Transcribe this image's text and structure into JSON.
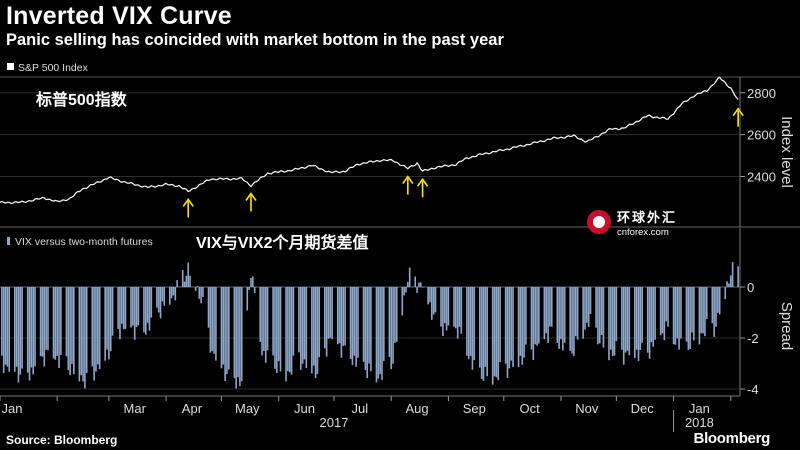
{
  "header": {
    "title": "Inverted VIX Curve",
    "subtitle": "Panic selling has coincided with market bottom in the past year"
  },
  "footer": {
    "source": "Source: Bloomberg",
    "brand": "Bloomberg"
  },
  "watermark": {
    "cn": "环球外汇",
    "en": "cnforex.com"
  },
  "chart_data": [
    {
      "type": "line",
      "panel": "top",
      "legend": "S&P 500 Index",
      "annotation": "标普500指数",
      "ylabel": "Index level",
      "yticks": [
        2400,
        2600,
        2800
      ],
      "ylim": [
        2240,
        2880
      ],
      "xlim": [
        "2017-01-01",
        "2018-02-06"
      ],
      "series": [
        {
          "values": [
            [
              "2017-01-01",
              2275
            ],
            [
              "2017-01-13",
              2277
            ],
            [
              "2017-01-25",
              2298
            ],
            [
              "2017-02-01",
              2279
            ],
            [
              "2017-02-08",
              2295
            ],
            [
              "2017-02-14",
              2337
            ],
            [
              "2017-03-01",
              2395
            ],
            [
              "2017-03-10",
              2372
            ],
            [
              "2017-03-22",
              2348
            ],
            [
              "2017-04-01",
              2362
            ],
            [
              "2017-04-08",
              2355
            ],
            [
              "2017-04-13",
              2329
            ],
            [
              "2017-04-25",
              2388
            ],
            [
              "2017-05-03",
              2388
            ],
            [
              "2017-05-12",
              2390
            ],
            [
              "2017-05-17",
              2357
            ],
            [
              "2017-05-26",
              2415
            ],
            [
              "2017-06-09",
              2431
            ],
            [
              "2017-06-19",
              2453
            ],
            [
              "2017-06-29",
              2419
            ],
            [
              "2017-07-07",
              2425
            ],
            [
              "2017-07-14",
              2459
            ],
            [
              "2017-07-26",
              2477
            ],
            [
              "2017-08-02",
              2477
            ],
            [
              "2017-08-10",
              2438
            ],
            [
              "2017-08-15",
              2464
            ],
            [
              "2017-08-18",
              2425
            ],
            [
              "2017-08-25",
              2443
            ],
            [
              "2017-09-05",
              2457
            ],
            [
              "2017-09-11",
              2488
            ],
            [
              "2017-09-20",
              2508
            ],
            [
              "2017-10-02",
              2529
            ],
            [
              "2017-10-16",
              2557
            ],
            [
              "2017-10-27",
              2581
            ],
            [
              "2017-11-08",
              2594
            ],
            [
              "2017-11-15",
              2565
            ],
            [
              "2017-11-28",
              2627
            ],
            [
              "2017-12-05",
              2630
            ],
            [
              "2017-12-18",
              2690
            ],
            [
              "2017-12-29",
              2674
            ],
            [
              "2018-01-05",
              2743
            ],
            [
              "2018-01-12",
              2786
            ],
            [
              "2018-01-19",
              2810
            ],
            [
              "2018-01-26",
              2872
            ],
            [
              "2018-02-01",
              2822
            ],
            [
              "2018-02-05",
              2762
            ]
          ]
        }
      ],
      "markers": [
        "2017-04-13",
        "2017-05-17",
        "2017-08-10",
        "2017-08-18",
        "2018-02-05"
      ]
    },
    {
      "type": "bar",
      "panel": "bottom",
      "legend": "VIX versus two-month futures",
      "annotation": "VIX与VIX2个月期货差值",
      "ylabel": "Spread",
      "yticks": [
        -4,
        -2,
        0
      ],
      "ylim": [
        -4.1,
        1.3
      ],
      "x_ticks": [
        "Jan",
        "Mar",
        "Apr",
        "May",
        "Jun",
        "Jul",
        "Aug",
        "Sep",
        "Oct",
        "Nov",
        "Dec",
        "Jan"
      ],
      "x_years": [
        "2017",
        "2018"
      ],
      "spread_anchors": [
        [
          "2017-01-01",
          -2.9
        ],
        [
          "2017-01-15",
          -3.5
        ],
        [
          "2017-01-27",
          -2.5
        ],
        [
          "2017-02-06",
          -3.0
        ],
        [
          "2017-02-17",
          -3.7
        ],
        [
          "2017-03-01",
          -2.5
        ],
        [
          "2017-03-08",
          -1.5
        ],
        [
          "2017-03-20",
          -1.7
        ],
        [
          "2017-03-28",
          -0.9
        ],
        [
          "2017-04-05",
          -0.3
        ],
        [
          "2017-04-13",
          0.8
        ],
        [
          "2017-04-20",
          -0.4
        ],
        [
          "2017-04-26",
          -2.5
        ],
        [
          "2017-05-05",
          -3.5
        ],
        [
          "2017-05-12",
          -3.7
        ],
        [
          "2017-05-17",
          0.8
        ],
        [
          "2017-05-23",
          -2.5
        ],
        [
          "2017-06-05",
          -3.4
        ],
        [
          "2017-06-12",
          -2.8
        ],
        [
          "2017-06-22",
          -3.3
        ],
        [
          "2017-06-29",
          -1.9
        ],
        [
          "2017-07-10",
          -2.7
        ],
        [
          "2017-07-25",
          -3.5
        ],
        [
          "2017-08-02",
          -2.8
        ],
        [
          "2017-08-10",
          0.4
        ],
        [
          "2017-08-18",
          0.1
        ],
        [
          "2017-08-26",
          -1.5
        ],
        [
          "2017-09-06",
          -1.6
        ],
        [
          "2017-09-16",
          -3.3
        ],
        [
          "2017-09-26",
          -3.5
        ],
        [
          "2017-10-06",
          -3.0
        ],
        [
          "2017-10-16",
          -2.5
        ],
        [
          "2017-10-26",
          -1.7
        ],
        [
          "2017-11-06",
          -2.6
        ],
        [
          "2017-11-16",
          -1.3
        ],
        [
          "2017-11-26",
          -2.5
        ],
        [
          "2017-12-06",
          -2.6
        ],
        [
          "2017-12-18",
          -2.5
        ],
        [
          "2017-12-28",
          -1.6
        ],
        [
          "2018-01-06",
          -2.4
        ],
        [
          "2018-01-16",
          -1.8
        ],
        [
          "2018-01-24",
          -1.5
        ],
        [
          "2018-01-31",
          0.4
        ],
        [
          "2018-02-05",
          0.8
        ]
      ]
    }
  ]
}
